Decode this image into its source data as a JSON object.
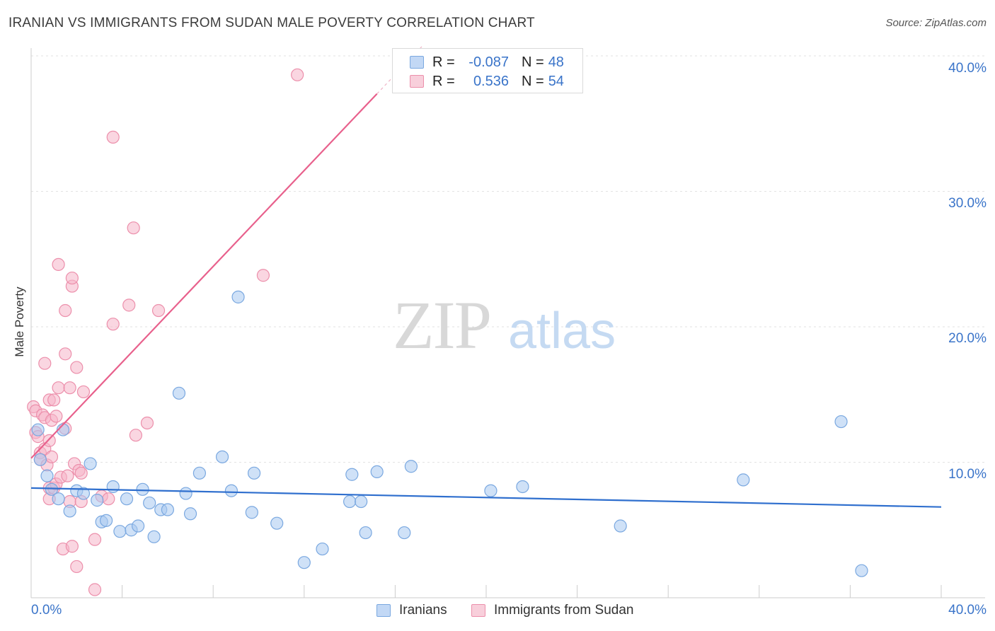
{
  "header": {
    "title": "IRANIAN VS IMMIGRANTS FROM SUDAN MALE POVERTY CORRELATION CHART",
    "source": "Source: ZipAtlas.com"
  },
  "watermark": {
    "zip": "ZIP",
    "atlas": "atlas"
  },
  "legend": {
    "rows": [
      {
        "label": "R =",
        "r": "-0.087",
        "n_label": "N =",
        "n": "48",
        "color": "#a8c8f0"
      },
      {
        "label": "R =",
        "r": "0.536",
        "n_label": "N =",
        "n": "54",
        "color": "#f5b5c8"
      }
    ]
  },
  "chart_data": {
    "type": "scatter",
    "title": "IRANIAN VS IMMIGRANTS FROM SUDAN MALE POVERTY CORRELATION CHART",
    "xlabel": "",
    "ylabel": "Male Poverty",
    "xlim": [
      0,
      40
    ],
    "ylim": [
      0,
      40
    ],
    "x_tick_labels": [
      "0.0%",
      "40.0%"
    ],
    "y_tick_labels": [
      "10.0%",
      "20.0%",
      "30.0%",
      "40.0%"
    ],
    "y_ticks": [
      10,
      20,
      30,
      40
    ],
    "grid": true,
    "legend_position": "top-center",
    "series": [
      {
        "name": "Iranians",
        "color": "#a8c8f0",
        "stroke": "#7aa8e0",
        "r": -0.087,
        "n": 48,
        "trend": {
          "x": [
            0,
            40
          ],
          "y": [
            8.1,
            6.7
          ],
          "color": "#2f6fce"
        },
        "points": [
          [
            0.3,
            12.4
          ],
          [
            0.4,
            10.2
          ],
          [
            0.7,
            9.0
          ],
          [
            0.9,
            8.0
          ],
          [
            1.2,
            7.3
          ],
          [
            1.4,
            12.4
          ],
          [
            1.7,
            6.4
          ],
          [
            2.0,
            7.9
          ],
          [
            2.3,
            7.7
          ],
          [
            2.6,
            9.9
          ],
          [
            2.9,
            7.2
          ],
          [
            3.1,
            5.6
          ],
          [
            3.3,
            5.7
          ],
          [
            3.6,
            8.2
          ],
          [
            3.9,
            4.9
          ],
          [
            4.2,
            7.3
          ],
          [
            4.4,
            5.0
          ],
          [
            4.7,
            5.3
          ],
          [
            4.9,
            8.0
          ],
          [
            5.2,
            7.0
          ],
          [
            5.4,
            4.5
          ],
          [
            5.7,
            6.5
          ],
          [
            6.0,
            6.5
          ],
          [
            6.5,
            15.1
          ],
          [
            6.8,
            7.7
          ],
          [
            7.0,
            6.2
          ],
          [
            7.4,
            9.2
          ],
          [
            8.4,
            10.4
          ],
          [
            8.8,
            7.9
          ],
          [
            9.1,
            22.2
          ],
          [
            9.7,
            6.3
          ],
          [
            9.8,
            9.2
          ],
          [
            10.8,
            5.5
          ],
          [
            12.0,
            2.6
          ],
          [
            12.8,
            3.6
          ],
          [
            14.0,
            7.1
          ],
          [
            14.1,
            9.1
          ],
          [
            14.5,
            7.1
          ],
          [
            14.7,
            4.8
          ],
          [
            15.2,
            9.3
          ],
          [
            16.4,
            4.8
          ],
          [
            16.7,
            9.7
          ],
          [
            20.2,
            7.9
          ],
          [
            21.6,
            8.2
          ],
          [
            25.9,
            5.3
          ],
          [
            31.3,
            8.7
          ],
          [
            35.6,
            13.0
          ],
          [
            36.5,
            2.0
          ]
        ]
      },
      {
        "name": "Immigrants from Sudan",
        "color": "#f5b5c8",
        "stroke": "#ec8fab",
        "r": 0.536,
        "n": 54,
        "trend": {
          "x": [
            0,
            15.2
          ],
          "y": [
            10.3,
            37.2
          ],
          "color": "#e8608c"
        },
        "points": [
          [
            0.1,
            14.1
          ],
          [
            0.2,
            13.8
          ],
          [
            0.2,
            12.2
          ],
          [
            0.3,
            11.9
          ],
          [
            0.4,
            10.7
          ],
          [
            0.4,
            10.2
          ],
          [
            0.5,
            13.5
          ],
          [
            0.6,
            11.0
          ],
          [
            0.6,
            13.3
          ],
          [
            0.6,
            17.3
          ],
          [
            0.7,
            9.8
          ],
          [
            0.8,
            14.6
          ],
          [
            0.8,
            11.6
          ],
          [
            0.8,
            8.1
          ],
          [
            0.8,
            7.3
          ],
          [
            0.9,
            13.1
          ],
          [
            0.9,
            10.4
          ],
          [
            1.0,
            14.6
          ],
          [
            1.0,
            8.1
          ],
          [
            1.1,
            13.4
          ],
          [
            1.1,
            8.4
          ],
          [
            1.2,
            15.5
          ],
          [
            1.2,
            24.6
          ],
          [
            1.3,
            8.9
          ],
          [
            1.4,
            3.6
          ],
          [
            1.5,
            12.5
          ],
          [
            1.5,
            18.0
          ],
          [
            1.5,
            21.2
          ],
          [
            1.6,
            9.0
          ],
          [
            1.7,
            15.5
          ],
          [
            1.7,
            7.1
          ],
          [
            1.8,
            23.0
          ],
          [
            1.8,
            23.6
          ],
          [
            1.8,
            3.8
          ],
          [
            1.9,
            9.9
          ],
          [
            2.0,
            17.0
          ],
          [
            2.0,
            2.3
          ],
          [
            2.1,
            9.4
          ],
          [
            2.2,
            7.1
          ],
          [
            2.2,
            9.2
          ],
          [
            2.3,
            15.2
          ],
          [
            2.8,
            4.3
          ],
          [
            2.8,
            0.6
          ],
          [
            3.1,
            7.5
          ],
          [
            3.6,
            20.2
          ],
          [
            3.6,
            34.0
          ],
          [
            4.3,
            21.6
          ],
          [
            4.5,
            27.3
          ],
          [
            4.6,
            12.0
          ],
          [
            5.1,
            12.9
          ],
          [
            5.6,
            21.2
          ],
          [
            10.2,
            23.8
          ],
          [
            11.7,
            38.6
          ],
          [
            3.4,
            7.3
          ]
        ]
      }
    ]
  },
  "axes": {
    "ylabel": "Male Poverty",
    "x_left": "0.0%",
    "x_right": "40.0%",
    "y_labels": [
      "40.0%",
      "30.0%",
      "20.0%",
      "10.0%"
    ]
  },
  "bottom_legend": {
    "items": [
      {
        "label": "Iranians",
        "color": "#a8c8f0"
      },
      {
        "label": "Immigrants from Sudan",
        "color": "#f5b5c8"
      }
    ]
  }
}
